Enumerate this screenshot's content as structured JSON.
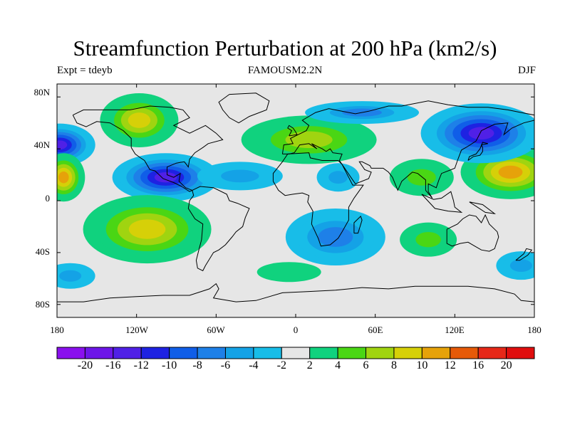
{
  "title": "Streamfunction Perturbation at 200 hPa (km2/s)",
  "subtitle_left": "Expt = tdeyb",
  "subtitle_center": "FAMOUSM2.2N",
  "subtitle_right": "DJF",
  "lat_labels": [
    "80N",
    "40N",
    "0",
    "40S",
    "80S"
  ],
  "lon_labels": [
    "180",
    "120W",
    "60W",
    "0",
    "60E",
    "120E",
    "180"
  ],
  "colorbar": {
    "levels": [
      "-20",
      "-16",
      "-12",
      "-10",
      "-8",
      "-6",
      "-4",
      "-2",
      "2",
      "4",
      "6",
      "8",
      "10",
      "12",
      "16",
      "20"
    ],
    "colors": [
      "#8a10ee",
      "#6d16e8",
      "#5020e6",
      "#1e22e2",
      "#105ee8",
      "#1e80e8",
      "#14a2e6",
      "#18bde8",
      "#e6e6e6",
      "#10d27e",
      "#4ad614",
      "#a0d410",
      "#d6d008",
      "#e6a20a",
      "#e65a08",
      "#e62818",
      "#e00e0e"
    ]
  },
  "chart_data": {
    "type": "heatmap",
    "projection": "cylindrical-equidistant",
    "field": "streamfunction perturbation",
    "units": "km2/s",
    "lon_range": [
      -180,
      180
    ],
    "lat_range": [
      -90,
      90
    ],
    "features": [
      {
        "lon": -118,
        "lat": 62,
        "value": 9
      },
      {
        "lon": -178,
        "lat": 43,
        "value": -14
      },
      {
        "lon": -175,
        "lat": 18,
        "value": 12
      },
      {
        "lon": -98,
        "lat": 18,
        "value": -15
      },
      {
        "lon": -42,
        "lat": 19,
        "value": -6
      },
      {
        "lon": 32,
        "lat": 18,
        "value": -5
      },
      {
        "lon": -112,
        "lat": -22,
        "value": 9
      },
      {
        "lon": -170,
        "lat": -58,
        "value": -5
      },
      {
        "lon": 10,
        "lat": 47,
        "value": 8
      },
      {
        "lon": 95,
        "lat": 18,
        "value": 6
      },
      {
        "lon": 162,
        "lat": 22,
        "value": 12
      },
      {
        "lon": 140,
        "lat": 52,
        "value": -14
      },
      {
        "lon": 50,
        "lat": 68,
        "value": -7
      },
      {
        "lon": 30,
        "lat": -28,
        "value": -7
      },
      {
        "lon": 100,
        "lat": -30,
        "value": 6
      },
      {
        "lon": -5,
        "lat": -55,
        "value": 3
      },
      {
        "lon": 170,
        "lat": -50,
        "value": -5
      }
    ]
  }
}
